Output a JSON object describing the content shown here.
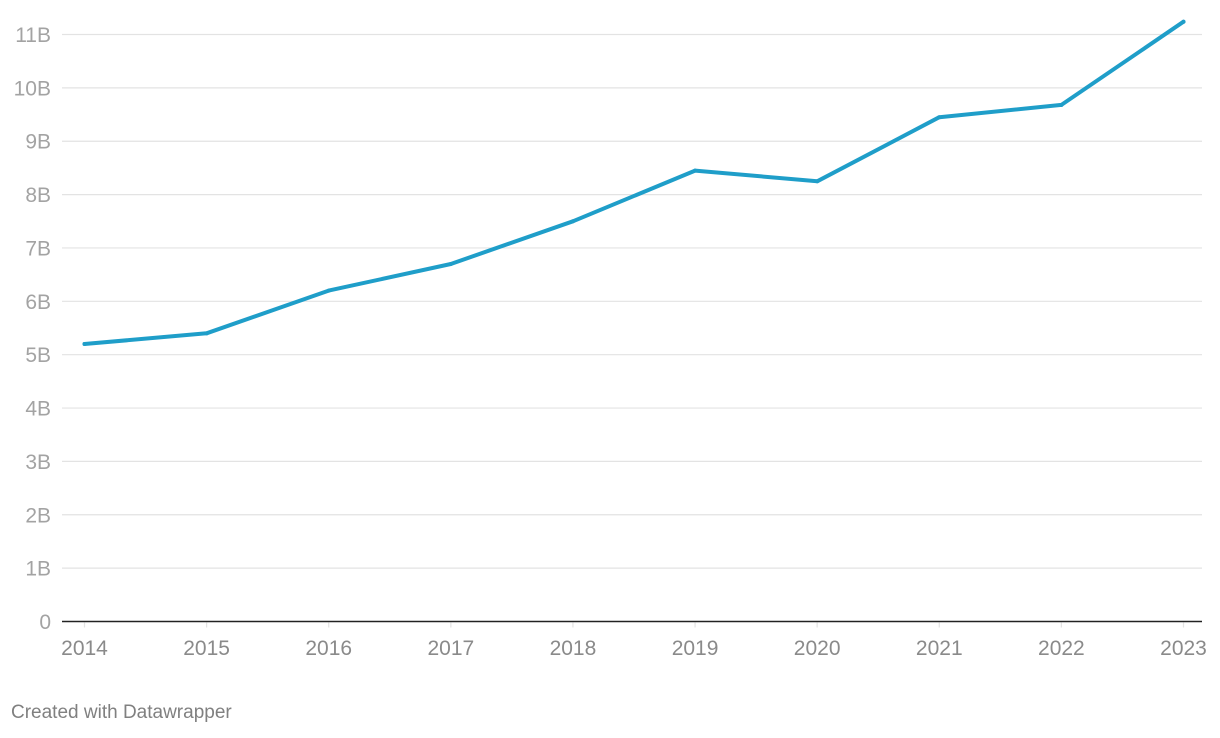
{
  "credit": "Created with Datawrapper",
  "colors": {
    "series": "#1f9ec9",
    "grid": "#e3e3e3",
    "baseline": "#222222"
  },
  "chart_data": {
    "type": "line",
    "title": "",
    "xlabel": "",
    "ylabel": "",
    "grid": true,
    "ylim": [
      0,
      11000000000
    ],
    "y_ticks": [
      {
        "value": 0,
        "label": "0"
      },
      {
        "value": 1000000000,
        "label": "1B"
      },
      {
        "value": 2000000000,
        "label": "2B"
      },
      {
        "value": 3000000000,
        "label": "3B"
      },
      {
        "value": 4000000000,
        "label": "4B"
      },
      {
        "value": 5000000000,
        "label": "5B"
      },
      {
        "value": 6000000000,
        "label": "6B"
      },
      {
        "value": 7000000000,
        "label": "7B"
      },
      {
        "value": 8000000000,
        "label": "8B"
      },
      {
        "value": 9000000000,
        "label": "9B"
      },
      {
        "value": 10000000000,
        "label": "10B"
      },
      {
        "value": 11000000000,
        "label": "11B"
      }
    ],
    "x": [
      "2014",
      "2015",
      "2016",
      "2017",
      "2018",
      "2019",
      "2020",
      "2021",
      "2022",
      "2023"
    ],
    "series": [
      {
        "values": [
          5200000000,
          5400000000,
          6200000000,
          6700000000,
          7500000000,
          8450000000,
          8250000000,
          9450000000,
          9680000000,
          11240000000
        ]
      }
    ]
  }
}
